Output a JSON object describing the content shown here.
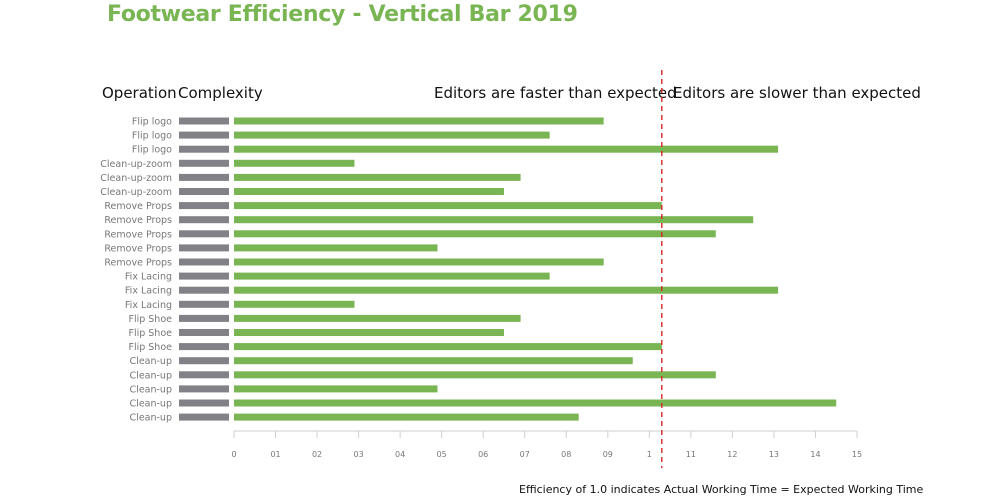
{
  "page": {
    "title": "Footwear Efficiency - Vertical Bar 2019",
    "header_operation": "Operation",
    "header_complexity": "Complexity",
    "header_faster": "Editors are faster than expected",
    "header_slower": "Editors are slower than expected",
    "footnote": "Efficiency of 1.0 indicates Actual Working Time = Expected Working Time"
  },
  "colors": {
    "bar": "#7ab554",
    "complexity": "#828187",
    "reference_line": "#d62828",
    "title": "#7ab554"
  },
  "chart_data": {
    "type": "bar",
    "orientation": "horizontal",
    "title": "Footwear Efficiency - Vertical Bar 2019",
    "categories": [
      "Flip logo",
      "Flip logo",
      "Flip logo",
      "Clean-up-zoom",
      "Clean-up-zoom",
      "Clean-up-zoom",
      "Remove Props",
      "Remove Props",
      "Remove Props",
      "Remove Props",
      "Remove Props",
      "Fix Lacing",
      "Fix Lacing",
      "Fix Lacing",
      "Flip Shoe",
      "Flip Shoe",
      "Flip Shoe",
      "Clean-up",
      "Clean-up",
      "Clean-up",
      "Clean-up",
      "Clean-up"
    ],
    "values": [
      0.89,
      0.76,
      1.31,
      0.29,
      0.69,
      0.65,
      1.03,
      1.25,
      1.16,
      0.49,
      0.89,
      0.76,
      1.31,
      0.29,
      0.69,
      0.65,
      1.03,
      0.96,
      1.16,
      0.49,
      1.45,
      0.83
    ],
    "xlim": [
      0,
      1.5
    ],
    "x_ticks": [
      "0",
      "01",
      "02",
      "03",
      "04",
      "05",
      "06",
      "07",
      "08",
      "09",
      "1",
      "11",
      "12",
      "13",
      "14",
      "15"
    ],
    "reference_line": 1.03,
    "grid": false,
    "legend": "none"
  }
}
